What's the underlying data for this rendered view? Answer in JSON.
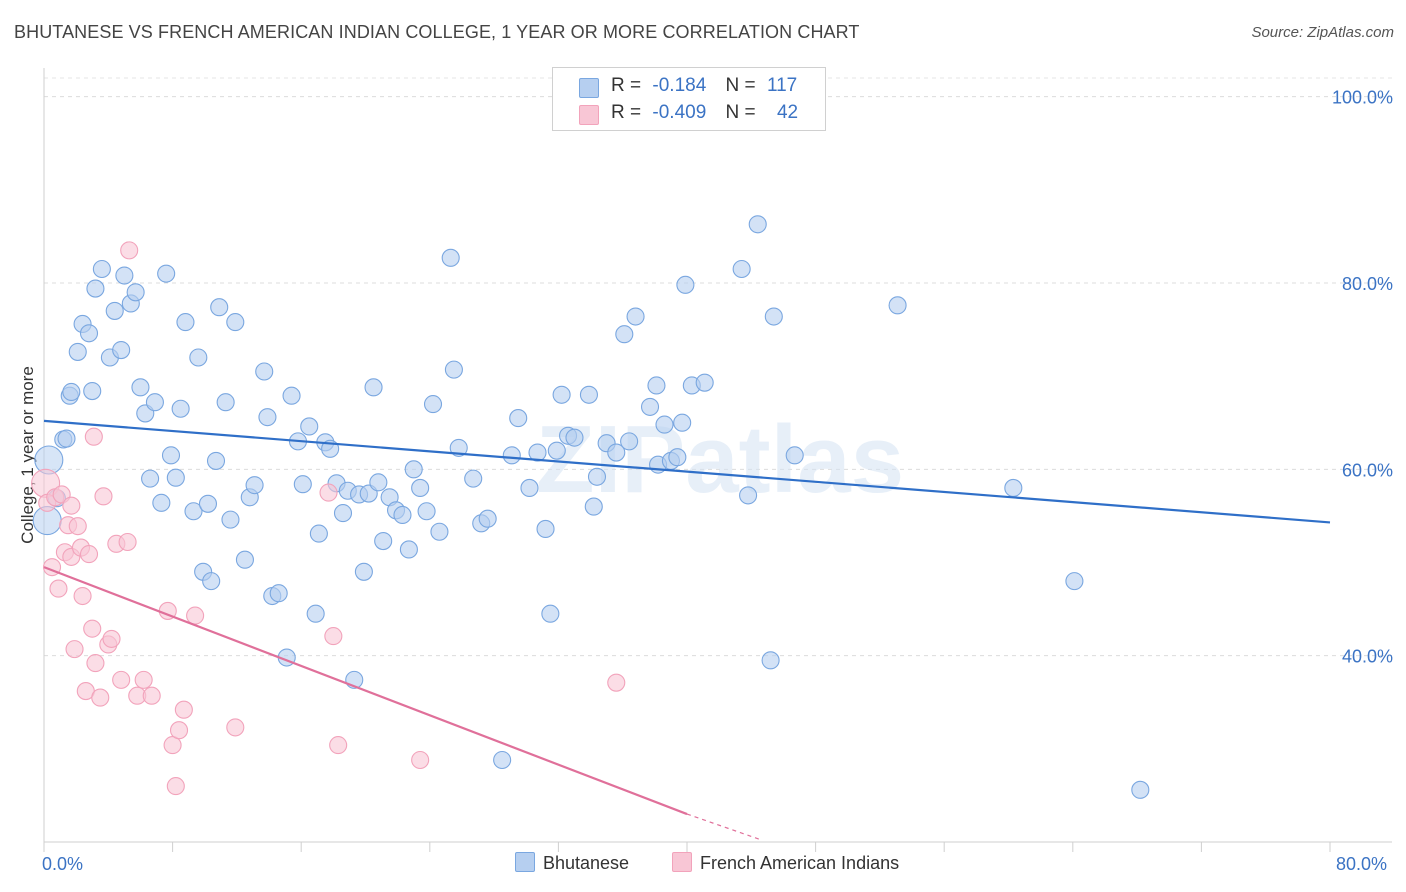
{
  "title": "BHUTANESE VS FRENCH AMERICAN INDIAN COLLEGE, 1 YEAR OR MORE CORRELATION CHART",
  "source": "Source: ZipAtlas.com",
  "watermark": "ZIPatlas",
  "legend": {
    "rows": [
      {
        "r_label": "R =",
        "r_value": "-0.184",
        "n_label": "N =",
        "n_value": "117",
        "color": "#a9c8f0"
      },
      {
        "r_label": "R =",
        "r_value": "-0.409",
        "n_label": "N =",
        "n_value": "42",
        "color": "#f5b7c9"
      }
    ]
  },
  "chart_data": {
    "type": "scatter",
    "title": "BHUTANESE VS FRENCH AMERICAN INDIAN COLLEGE, 1 YEAR OR MORE CORRELATION CHART",
    "xlabel": "",
    "ylabel": "College, 1 year or more",
    "xlim": [
      0,
      80
    ],
    "ylim": [
      20,
      102
    ],
    "x_tick_labels": [
      "0.0%",
      "80.0%"
    ],
    "y_tick_labels": [
      "40.0%",
      "60.0%",
      "80.0%",
      "100.0%"
    ],
    "y_ticks": [
      40,
      60,
      80,
      100
    ],
    "grid": true,
    "legend_position": "bottom-center",
    "series": [
      {
        "name": "Bhutanese",
        "color": "#7aa7e0",
        "fill": "#b6cff0",
        "trend": {
          "x0": 0,
          "y0": 65.2,
          "x1": 80,
          "y1": 54.3,
          "color": "#2f6fc8"
        },
        "points": [
          [
            0.2,
            54.5
          ],
          [
            0.3,
            61.0
          ],
          [
            1.2,
            63.2
          ],
          [
            1.6,
            67.9
          ],
          [
            1.7,
            68.3
          ],
          [
            2.1,
            72.6
          ],
          [
            2.4,
            75.6
          ],
          [
            2.8,
            74.6
          ],
          [
            3.2,
            79.4
          ],
          [
            3.6,
            81.5
          ],
          [
            4.1,
            72.0
          ],
          [
            4.4,
            77.0
          ],
          [
            4.8,
            72.8
          ],
          [
            5.0,
            80.8
          ],
          [
            5.4,
            77.8
          ],
          [
            5.7,
            79.0
          ],
          [
            6.0,
            68.8
          ],
          [
            6.3,
            66.0
          ],
          [
            6.6,
            59.0
          ],
          [
            6.9,
            67.2
          ],
          [
            7.3,
            56.4
          ],
          [
            7.6,
            81.0
          ],
          [
            7.9,
            61.5
          ],
          [
            8.2,
            59.1
          ],
          [
            8.5,
            66.5
          ],
          [
            8.8,
            75.8
          ],
          [
            9.3,
            55.5
          ],
          [
            9.6,
            72.0
          ],
          [
            9.9,
            49.0
          ],
          [
            10.2,
            56.3
          ],
          [
            10.4,
            48.0
          ],
          [
            10.7,
            60.9
          ],
          [
            10.9,
            77.4
          ],
          [
            11.3,
            67.2
          ],
          [
            11.6,
            54.6
          ],
          [
            11.9,
            75.8
          ],
          [
            12.5,
            50.3
          ],
          [
            12.8,
            57.0
          ],
          [
            13.1,
            58.3
          ],
          [
            13.7,
            70.5
          ],
          [
            13.9,
            65.6
          ],
          [
            14.2,
            46.4
          ],
          [
            14.6,
            46.7
          ],
          [
            15.1,
            39.8
          ],
          [
            15.4,
            67.9
          ],
          [
            15.8,
            63.0
          ],
          [
            16.1,
            58.4
          ],
          [
            16.5,
            64.6
          ],
          [
            16.9,
            44.5
          ],
          [
            17.1,
            53.1
          ],
          [
            17.5,
            62.9
          ],
          [
            17.8,
            62.2
          ],
          [
            18.2,
            58.5
          ],
          [
            18.6,
            55.3
          ],
          [
            18.9,
            57.7
          ],
          [
            19.3,
            37.4
          ],
          [
            19.6,
            57.3
          ],
          [
            19.9,
            49.0
          ],
          [
            20.2,
            57.4
          ],
          [
            20.5,
            68.8
          ],
          [
            20.8,
            58.6
          ],
          [
            21.1,
            52.3
          ],
          [
            21.5,
            57.0
          ],
          [
            21.9,
            55.6
          ],
          [
            22.3,
            55.1
          ],
          [
            22.7,
            51.4
          ],
          [
            23.0,
            60.0
          ],
          [
            23.4,
            58.0
          ],
          [
            23.8,
            55.5
          ],
          [
            24.2,
            67.0
          ],
          [
            24.6,
            53.3
          ],
          [
            25.3,
            82.7
          ],
          [
            25.5,
            70.7
          ],
          [
            25.8,
            62.3
          ],
          [
            26.7,
            59.0
          ],
          [
            27.2,
            54.2
          ],
          [
            27.6,
            54.7
          ],
          [
            28.5,
            28.8
          ],
          [
            29.1,
            61.5
          ],
          [
            29.5,
            65.5
          ],
          [
            30.2,
            58.0
          ],
          [
            30.7,
            61.8
          ],
          [
            31.2,
            53.6
          ],
          [
            31.5,
            44.5
          ],
          [
            31.9,
            62.0
          ],
          [
            32.2,
            68.0
          ],
          [
            32.6,
            63.6
          ],
          [
            33.0,
            63.4
          ],
          [
            33.9,
            68.0
          ],
          [
            34.2,
            56.0
          ],
          [
            34.4,
            59.2
          ],
          [
            35.0,
            62.8
          ],
          [
            35.6,
            61.8
          ],
          [
            36.1,
            74.5
          ],
          [
            36.4,
            63.0
          ],
          [
            36.8,
            76.4
          ],
          [
            37.7,
            66.7
          ],
          [
            38.1,
            69.0
          ],
          [
            38.2,
            60.5
          ],
          [
            38.6,
            64.8
          ],
          [
            39.0,
            60.9
          ],
          [
            39.4,
            61.3
          ],
          [
            39.7,
            65.0
          ],
          [
            39.9,
            79.8
          ],
          [
            40.3,
            69.0
          ],
          [
            41.1,
            69.3
          ],
          [
            43.4,
            81.5
          ],
          [
            43.8,
            57.2
          ],
          [
            44.4,
            86.3
          ],
          [
            45.2,
            39.5
          ],
          [
            45.4,
            76.4
          ],
          [
            46.7,
            61.5
          ],
          [
            53.1,
            77.6
          ],
          [
            60.3,
            58.0
          ],
          [
            64.1,
            48.0
          ],
          [
            68.2,
            25.6
          ],
          [
            0.8,
            56.9
          ],
          [
            1.4,
            63.3
          ],
          [
            3.0,
            68.4
          ]
        ]
      },
      {
        "name": "French American Indians",
        "color": "#f2a3bb",
        "fill": "#f8c6d5",
        "trend": {
          "x0": 0,
          "y0": 49.5,
          "x1": 40,
          "y1": 23.0,
          "dash_x1": 44.5,
          "dash_y1": 20.3,
          "color": "#e0709a"
        },
        "points": [
          [
            0.1,
            58.5
          ],
          [
            0.2,
            56.4
          ],
          [
            0.5,
            49.5
          ],
          [
            0.7,
            57.0
          ],
          [
            0.9,
            47.2
          ],
          [
            1.1,
            57.3
          ],
          [
            1.3,
            51.1
          ],
          [
            1.5,
            54.0
          ],
          [
            1.7,
            56.1
          ],
          [
            1.7,
            50.6
          ],
          [
            1.9,
            40.7
          ],
          [
            2.1,
            53.9
          ],
          [
            2.3,
            51.6
          ],
          [
            2.4,
            46.4
          ],
          [
            2.6,
            36.2
          ],
          [
            2.8,
            50.9
          ],
          [
            3.0,
            42.9
          ],
          [
            3.2,
            39.2
          ],
          [
            3.5,
            35.5
          ],
          [
            3.7,
            57.1
          ],
          [
            4.0,
            41.2
          ],
          [
            4.2,
            41.8
          ],
          [
            4.5,
            52.0
          ],
          [
            4.8,
            37.4
          ],
          [
            5.2,
            52.2
          ],
          [
            5.3,
            83.5
          ],
          [
            5.8,
            35.7
          ],
          [
            6.2,
            37.4
          ],
          [
            6.7,
            35.7
          ],
          [
            7.7,
            44.8
          ],
          [
            8.0,
            30.4
          ],
          [
            8.2,
            26.0
          ],
          [
            8.4,
            32.0
          ],
          [
            8.7,
            34.2
          ],
          [
            9.4,
            44.3
          ],
          [
            11.9,
            32.3
          ],
          [
            17.7,
            57.5
          ],
          [
            18.0,
            42.1
          ],
          [
            18.3,
            30.4
          ],
          [
            23.4,
            28.8
          ],
          [
            35.6,
            37.1
          ],
          [
            3.1,
            63.5
          ]
        ]
      }
    ]
  }
}
